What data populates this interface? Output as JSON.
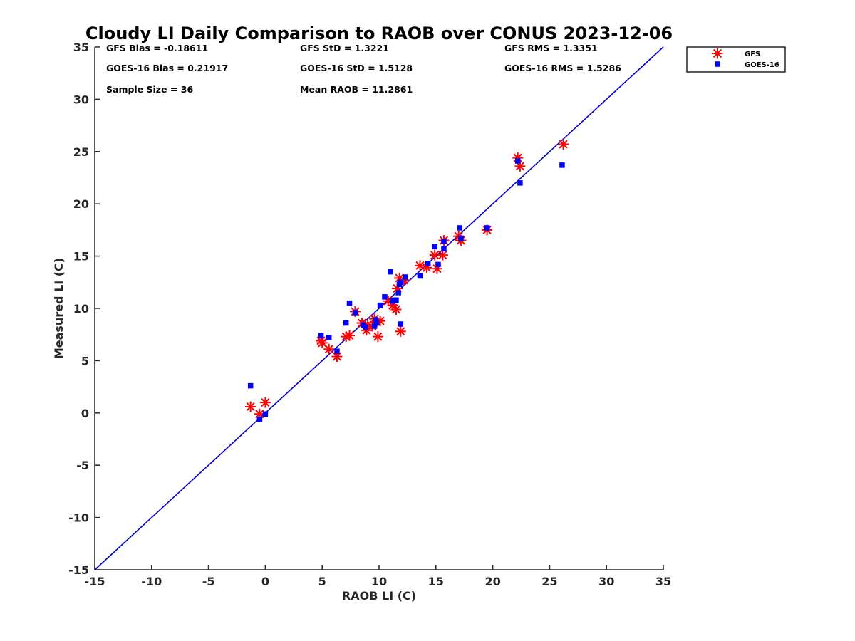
{
  "chart_data": {
    "type": "scatter",
    "title": "Cloudy LI Daily Comparison to RAOB over CONUS 2023-12-06",
    "xlabel": "RAOB LI (C)",
    "ylabel": "Measured LI (C)",
    "xlim": [
      -15,
      35
    ],
    "ylim": [
      -15,
      35
    ],
    "xticks": [
      "-15",
      "-10",
      "-5",
      "0",
      "5",
      "10",
      "15",
      "20",
      "25",
      "30",
      "35"
    ],
    "yticks": [
      "-15",
      "-10",
      "-5",
      "0",
      "5",
      "10",
      "15",
      "20",
      "25",
      "30",
      "35"
    ],
    "grid": false,
    "legend_position": "outside-top-right",
    "reference_line": {
      "type": "one-to-one",
      "color": "#0000d6"
    },
    "stats": [
      "GFS Bias = -0.18611",
      "GFS StD = 1.3221",
      "GFS RMS = 1.3351",
      "GOES-16 Bias = 0.21917",
      "GOES-16 StD = 1.5128",
      "GOES-16 RMS = 1.5286",
      "Sample Size = 36",
      "Mean RAOB = 11.2861"
    ],
    "series": [
      {
        "name": "GFS",
        "marker": "asterisk",
        "color": "#ff0000",
        "x": [
          -1.3,
          -0.5,
          0.0,
          4.9,
          5.0,
          5.6,
          6.3,
          7.1,
          7.4,
          7.9,
          8.5,
          8.9,
          9.4,
          9.6,
          9.9,
          10.1,
          10.8,
          11.2,
          11.5,
          11.6,
          11.8,
          11.9,
          12.2,
          13.6,
          14.2,
          14.9,
          15.1,
          15.6,
          15.7,
          17.0,
          17.2,
          19.5,
          22.2,
          22.4,
          26.2,
          9.0
        ],
        "y": [
          0.6,
          -0.1,
          1.0,
          6.9,
          6.7,
          6.1,
          5.4,
          7.3,
          7.4,
          9.7,
          8.6,
          7.9,
          8.3,
          9.0,
          7.3,
          8.8,
          10.7,
          10.3,
          9.9,
          11.9,
          12.9,
          7.8,
          12.7,
          14.1,
          13.9,
          15.1,
          13.8,
          15.1,
          16.5,
          16.9,
          16.5,
          17.5,
          24.4,
          23.6,
          25.7,
          8.4
        ]
      },
      {
        "name": "GOES-16",
        "marker": "square",
        "color": "#0000ff",
        "x": [
          -1.3,
          -0.5,
          0.0,
          4.9,
          5.6,
          6.3,
          7.1,
          7.4,
          7.9,
          8.6,
          8.8,
          9.6,
          9.8,
          10.1,
          10.5,
          11.0,
          11.2,
          11.5,
          11.7,
          11.8,
          11.9,
          12.3,
          13.6,
          14.3,
          14.9,
          15.2,
          15.7,
          15.7,
          17.1,
          17.2,
          19.5,
          22.2,
          22.4,
          26.1,
          9.7,
          11.9
        ],
        "y": [
          2.6,
          -0.6,
          -0.1,
          7.4,
          7.2,
          5.9,
          8.6,
          10.5,
          9.6,
          8.4,
          8.2,
          8.3,
          8.6,
          10.3,
          11.1,
          13.5,
          10.7,
          10.8,
          11.5,
          12.3,
          8.5,
          13.0,
          13.1,
          14.3,
          15.9,
          14.2,
          15.7,
          16.4,
          17.7,
          16.7,
          17.7,
          24.1,
          22.0,
          23.7,
          8.9,
          12.5
        ]
      }
    ]
  }
}
